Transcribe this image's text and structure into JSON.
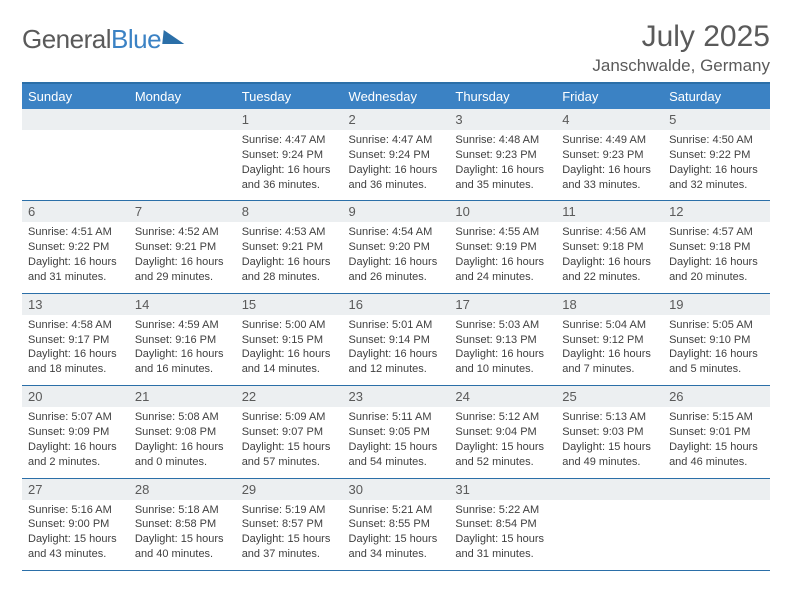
{
  "logo": {
    "part1": "General",
    "part2": "Blue"
  },
  "header": {
    "monthTitle": "July 2025",
    "location": "Janschwalde, Germany"
  },
  "colors": {
    "headerBlue": "#3b82c4",
    "ruleBlue": "#2b6fa8",
    "dayNumBg": "#eceff1",
    "textGrey": "#5a5a5a",
    "bodyText": "#404040",
    "background": "#ffffff"
  },
  "dayNames": [
    "Sunday",
    "Monday",
    "Tuesday",
    "Wednesday",
    "Thursday",
    "Friday",
    "Saturday"
  ],
  "weeks": [
    [
      null,
      null,
      {
        "n": "1",
        "sr": "4:47 AM",
        "ss": "9:24 PM",
        "dl": "16 hours and 36 minutes."
      },
      {
        "n": "2",
        "sr": "4:47 AM",
        "ss": "9:24 PM",
        "dl": "16 hours and 36 minutes."
      },
      {
        "n": "3",
        "sr": "4:48 AM",
        "ss": "9:23 PM",
        "dl": "16 hours and 35 minutes."
      },
      {
        "n": "4",
        "sr": "4:49 AM",
        "ss": "9:23 PM",
        "dl": "16 hours and 33 minutes."
      },
      {
        "n": "5",
        "sr": "4:50 AM",
        "ss": "9:22 PM",
        "dl": "16 hours and 32 minutes."
      }
    ],
    [
      {
        "n": "6",
        "sr": "4:51 AM",
        "ss": "9:22 PM",
        "dl": "16 hours and 31 minutes."
      },
      {
        "n": "7",
        "sr": "4:52 AM",
        "ss": "9:21 PM",
        "dl": "16 hours and 29 minutes."
      },
      {
        "n": "8",
        "sr": "4:53 AM",
        "ss": "9:21 PM",
        "dl": "16 hours and 28 minutes."
      },
      {
        "n": "9",
        "sr": "4:54 AM",
        "ss": "9:20 PM",
        "dl": "16 hours and 26 minutes."
      },
      {
        "n": "10",
        "sr": "4:55 AM",
        "ss": "9:19 PM",
        "dl": "16 hours and 24 minutes."
      },
      {
        "n": "11",
        "sr": "4:56 AM",
        "ss": "9:18 PM",
        "dl": "16 hours and 22 minutes."
      },
      {
        "n": "12",
        "sr": "4:57 AM",
        "ss": "9:18 PM",
        "dl": "16 hours and 20 minutes."
      }
    ],
    [
      {
        "n": "13",
        "sr": "4:58 AM",
        "ss": "9:17 PM",
        "dl": "16 hours and 18 minutes."
      },
      {
        "n": "14",
        "sr": "4:59 AM",
        "ss": "9:16 PM",
        "dl": "16 hours and 16 minutes."
      },
      {
        "n": "15",
        "sr": "5:00 AM",
        "ss": "9:15 PM",
        "dl": "16 hours and 14 minutes."
      },
      {
        "n": "16",
        "sr": "5:01 AM",
        "ss": "9:14 PM",
        "dl": "16 hours and 12 minutes."
      },
      {
        "n": "17",
        "sr": "5:03 AM",
        "ss": "9:13 PM",
        "dl": "16 hours and 10 minutes."
      },
      {
        "n": "18",
        "sr": "5:04 AM",
        "ss": "9:12 PM",
        "dl": "16 hours and 7 minutes."
      },
      {
        "n": "19",
        "sr": "5:05 AM",
        "ss": "9:10 PM",
        "dl": "16 hours and 5 minutes."
      }
    ],
    [
      {
        "n": "20",
        "sr": "5:07 AM",
        "ss": "9:09 PM",
        "dl": "16 hours and 2 minutes."
      },
      {
        "n": "21",
        "sr": "5:08 AM",
        "ss": "9:08 PM",
        "dl": "16 hours and 0 minutes."
      },
      {
        "n": "22",
        "sr": "5:09 AM",
        "ss": "9:07 PM",
        "dl": "15 hours and 57 minutes."
      },
      {
        "n": "23",
        "sr": "5:11 AM",
        "ss": "9:05 PM",
        "dl": "15 hours and 54 minutes."
      },
      {
        "n": "24",
        "sr": "5:12 AM",
        "ss": "9:04 PM",
        "dl": "15 hours and 52 minutes."
      },
      {
        "n": "25",
        "sr": "5:13 AM",
        "ss": "9:03 PM",
        "dl": "15 hours and 49 minutes."
      },
      {
        "n": "26",
        "sr": "5:15 AM",
        "ss": "9:01 PM",
        "dl": "15 hours and 46 minutes."
      }
    ],
    [
      {
        "n": "27",
        "sr": "5:16 AM",
        "ss": "9:00 PM",
        "dl": "15 hours and 43 minutes."
      },
      {
        "n": "28",
        "sr": "5:18 AM",
        "ss": "8:58 PM",
        "dl": "15 hours and 40 minutes."
      },
      {
        "n": "29",
        "sr": "5:19 AM",
        "ss": "8:57 PM",
        "dl": "15 hours and 37 minutes."
      },
      {
        "n": "30",
        "sr": "5:21 AM",
        "ss": "8:55 PM",
        "dl": "15 hours and 34 minutes."
      },
      {
        "n": "31",
        "sr": "5:22 AM",
        "ss": "8:54 PM",
        "dl": "15 hours and 31 minutes."
      },
      null,
      null
    ]
  ],
  "labels": {
    "sunrise": "Sunrise: ",
    "sunset": "Sunset: ",
    "daylight": "Daylight: "
  }
}
